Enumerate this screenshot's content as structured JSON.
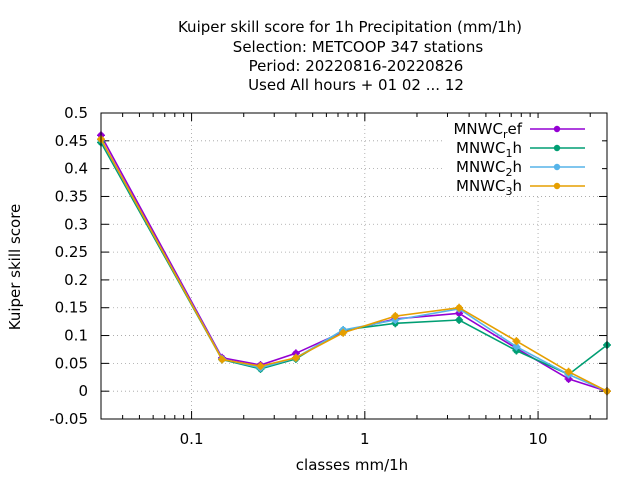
{
  "chart_data": {
    "type": "line",
    "title_lines": [
      "Kuiper skill score  for 1h Precipitation (mm/1h)",
      "Selection: METCOOP    347 stations",
      "Period: 20220816-20220826",
      "Used  All hours + 01 02 ... 12"
    ],
    "xlabel": "classes mm/1h",
    "ylabel": "Kuiper skill score",
    "x_scale": "log",
    "xlim": [
      0.03,
      25
    ],
    "ylim": [
      -0.05,
      0.5
    ],
    "x_ticks": [
      0.1,
      1,
      10
    ],
    "x_tick_labels": [
      "0.1",
      "1",
      "10"
    ],
    "y_ticks": [
      -0.05,
      0,
      0.05,
      0.1,
      0.15,
      0.2,
      0.25,
      0.3,
      0.35,
      0.4,
      0.45,
      0.5
    ],
    "y_tick_labels": [
      "-0.05",
      "0",
      "0.05",
      "0.1",
      "0.15",
      "0.2",
      "0.25",
      "0.3",
      "0.35",
      "0.4",
      "0.45",
      "0.5"
    ],
    "grid": true,
    "legend_position": "top-right",
    "x": [
      0.03,
      0.15,
      0.25,
      0.4,
      0.75,
      1.5,
      3.5,
      7.5,
      15,
      25
    ],
    "series": [
      {
        "name": "MNWC",
        "subscript": "r",
        "suffix": "ef",
        "color": "#9400d3",
        "values": [
          0.46,
          0.06,
          0.047,
          0.068,
          0.107,
          0.13,
          0.14,
          0.077,
          0.022,
          0.0
        ]
      },
      {
        "name": "MNWC",
        "subscript": "1",
        "suffix": "h",
        "color": "#009e73",
        "values": [
          0.447,
          0.057,
          0.04,
          0.058,
          0.11,
          0.122,
          0.128,
          0.073,
          0.03,
          0.083
        ]
      },
      {
        "name": "MNWC",
        "subscript": "2",
        "suffix": "h",
        "color": "#56b4e9",
        "values": [
          0.452,
          0.058,
          0.042,
          0.06,
          0.11,
          0.128,
          0.148,
          0.08,
          0.03,
          0.0
        ]
      },
      {
        "name": "MNWC",
        "subscript": "3",
        "suffix": "h",
        "color": "#e69f00",
        "values": [
          0.453,
          0.057,
          0.045,
          0.06,
          0.105,
          0.135,
          0.15,
          0.09,
          0.035,
          0.0
        ]
      }
    ]
  }
}
